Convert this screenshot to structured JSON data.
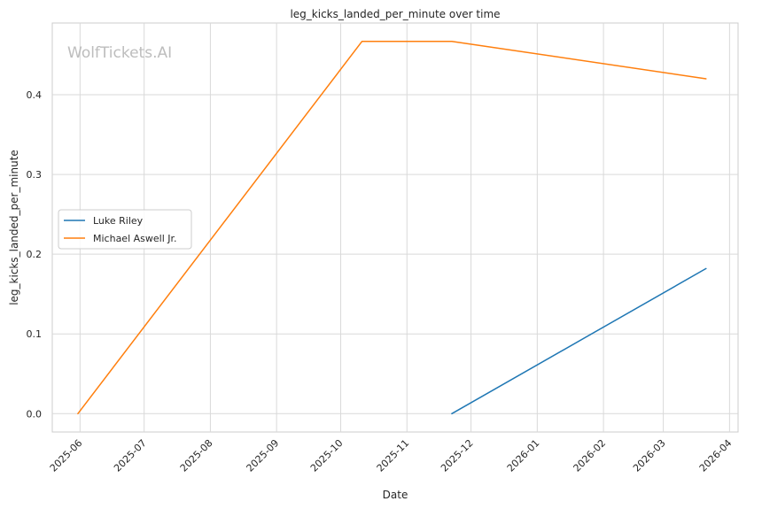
{
  "chart_data": {
    "type": "line",
    "title": "leg_kicks_landed_per_minute over time",
    "xlabel": "Date",
    "ylabel": "leg_kicks_landed_per_minute",
    "watermark": "WolfTickets.AI",
    "x_ticks": [
      "2025-06",
      "2025-07",
      "2025-08",
      "2025-09",
      "2025-10",
      "2025-11",
      "2025-12",
      "2026-01",
      "2026-02",
      "2026-03",
      "2026-04"
    ],
    "y_ticks": [
      "0.0",
      "0.1",
      "0.2",
      "0.3",
      "0.4"
    ],
    "xlim": [
      "2025-05-19",
      "2026-04-05"
    ],
    "ylim": [
      -0.023,
      0.49
    ],
    "grid": true,
    "legend_position": "center-left",
    "series": [
      {
        "name": "Luke Riley",
        "color": "#1f77b4",
        "points": [
          {
            "x": "2025-11-22",
            "y": 0.0
          },
          {
            "x": "2026-03-21",
            "y": 0.182
          }
        ]
      },
      {
        "name": "Michael Aswell Jr.",
        "color": "#ff7f0e",
        "points": [
          {
            "x": "2025-05-31",
            "y": 0.0
          },
          {
            "x": "2025-10-11",
            "y": 0.467
          },
          {
            "x": "2025-11-22",
            "y": 0.467
          },
          {
            "x": "2026-03-21",
            "y": 0.42
          }
        ]
      }
    ]
  }
}
